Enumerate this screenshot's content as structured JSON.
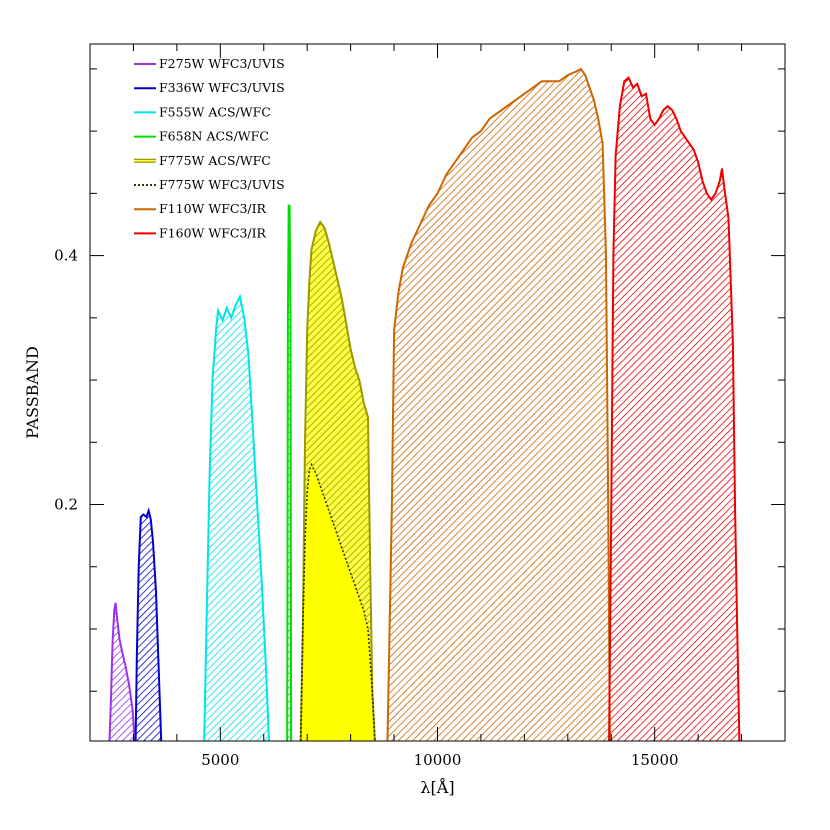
{
  "chart_data": {
    "type": "area",
    "title": "",
    "xlabel": "λ[Å]",
    "ylabel": "PASSBAND",
    "xlim": [
      2000,
      18000
    ],
    "ylim": [
      0.01,
      0.57
    ],
    "x_ticks": [
      5000,
      10000,
      15000
    ],
    "x_tick_labels": [
      "5000",
      "10000",
      "15000"
    ],
    "y_ticks": [
      0.2,
      0.4
    ],
    "y_tick_labels": [
      "0.2",
      "0.4"
    ],
    "grid": false,
    "legend_position": "top-left",
    "series": [
      {
        "name": "F275W WFC3/UVIS",
        "color": "#9933ee",
        "fill": "hatch",
        "points": [
          [
            2450,
            0.01
          ],
          [
            2480,
            0.04
          ],
          [
            2520,
            0.09
          ],
          [
            2560,
            0.115
          ],
          [
            2590,
            0.121
          ],
          [
            2620,
            0.11
          ],
          [
            2680,
            0.092
          ],
          [
            2750,
            0.08
          ],
          [
            2820,
            0.07
          ],
          [
            2900,
            0.055
          ],
          [
            2980,
            0.035
          ],
          [
            3030,
            0.01
          ]
        ]
      },
      {
        "name": "F336W WFC3/UVIS",
        "color": "#0000cc",
        "fill": "hatch",
        "points": [
          [
            3050,
            0.01
          ],
          [
            3080,
            0.08
          ],
          [
            3120,
            0.15
          ],
          [
            3170,
            0.19
          ],
          [
            3230,
            0.192
          ],
          [
            3300,
            0.19
          ],
          [
            3350,
            0.195
          ],
          [
            3400,
            0.188
          ],
          [
            3450,
            0.17
          ],
          [
            3520,
            0.13
          ],
          [
            3580,
            0.07
          ],
          [
            3640,
            0.01
          ]
        ]
      },
      {
        "name": "F555W ACS/WFC",
        "color": "#00e5e5",
        "fill": "hatch",
        "points": [
          [
            4630,
            0.01
          ],
          [
            4680,
            0.1
          ],
          [
            4750,
            0.22
          ],
          [
            4820,
            0.3
          ],
          [
            4900,
            0.34
          ],
          [
            4950,
            0.356
          ],
          [
            5050,
            0.348
          ],
          [
            5150,
            0.358
          ],
          [
            5250,
            0.35
          ],
          [
            5350,
            0.36
          ],
          [
            5450,
            0.367
          ],
          [
            5550,
            0.35
          ],
          [
            5650,
            0.32
          ],
          [
            5750,
            0.26
          ],
          [
            5850,
            0.2
          ],
          [
            5950,
            0.14
          ],
          [
            6050,
            0.07
          ],
          [
            6120,
            0.01
          ]
        ]
      },
      {
        "name": "F658N ACS/WFC",
        "color": "#00dd00",
        "fill": "hatch",
        "points": [
          [
            6540,
            0.01
          ],
          [
            6555,
            0.35
          ],
          [
            6575,
            0.44
          ],
          [
            6595,
            0.44
          ],
          [
            6615,
            0.35
          ],
          [
            6630,
            0.01
          ]
        ]
      },
      {
        "name": "F775W ACS/WFC",
        "color": "#999900",
        "fill_color": "#ffff44",
        "fill": "hatch",
        "points": [
          [
            6850,
            0.01
          ],
          [
            6900,
            0.1
          ],
          [
            6950,
            0.25
          ],
          [
            7000,
            0.34
          ],
          [
            7050,
            0.38
          ],
          [
            7100,
            0.405
          ],
          [
            7200,
            0.42
          ],
          [
            7300,
            0.427
          ],
          [
            7400,
            0.422
          ],
          [
            7500,
            0.41
          ],
          [
            7600,
            0.395
          ],
          [
            7700,
            0.38
          ],
          [
            7800,
            0.365
          ],
          [
            7900,
            0.345
          ],
          [
            8000,
            0.325
          ],
          [
            8100,
            0.31
          ],
          [
            8200,
            0.3
          ],
          [
            8300,
            0.282
          ],
          [
            8400,
            0.27
          ],
          [
            8450,
            0.15
          ],
          [
            8500,
            0.05
          ],
          [
            8560,
            0.01
          ]
        ]
      },
      {
        "name": "F775W WFC3/UVIS",
        "color": "#333300",
        "line_style": "dotted",
        "fill_color": "#ffff00",
        "fill": "solid",
        "points": [
          [
            6850,
            0.01
          ],
          [
            6900,
            0.1
          ],
          [
            6950,
            0.17
          ],
          [
            7000,
            0.21
          ],
          [
            7050,
            0.228
          ],
          [
            7100,
            0.232
          ],
          [
            7200,
            0.225
          ],
          [
            7300,
            0.215
          ],
          [
            7400,
            0.205
          ],
          [
            7500,
            0.195
          ],
          [
            7600,
            0.185
          ],
          [
            7700,
            0.175
          ],
          [
            7800,
            0.165
          ],
          [
            7900,
            0.155
          ],
          [
            8000,
            0.145
          ],
          [
            8100,
            0.135
          ],
          [
            8200,
            0.125
          ],
          [
            8300,
            0.115
          ],
          [
            8400,
            0.1
          ],
          [
            8500,
            0.05
          ],
          [
            8560,
            0.01
          ]
        ]
      },
      {
        "name": "F110W WFC3/IR",
        "color": "#cc6600",
        "fill": "hatch",
        "points": [
          [
            8850,
            0.01
          ],
          [
            8950,
            0.2
          ],
          [
            9000,
            0.34
          ],
          [
            9100,
            0.37
          ],
          [
            9200,
            0.39
          ],
          [
            9400,
            0.41
          ],
          [
            9600,
            0.425
          ],
          [
            9800,
            0.44
          ],
          [
            10000,
            0.45
          ],
          [
            10200,
            0.465
          ],
          [
            10400,
            0.475
          ],
          [
            10600,
            0.485
          ],
          [
            10800,
            0.495
          ],
          [
            11000,
            0.5
          ],
          [
            11200,
            0.51
          ],
          [
            11400,
            0.515
          ],
          [
            11600,
            0.52
          ],
          [
            11800,
            0.525
          ],
          [
            12000,
            0.53
          ],
          [
            12200,
            0.535
          ],
          [
            12400,
            0.54
          ],
          [
            12600,
            0.54
          ],
          [
            12800,
            0.54
          ],
          [
            13000,
            0.545
          ],
          [
            13200,
            0.548
          ],
          [
            13300,
            0.55
          ],
          [
            13400,
            0.545
          ],
          [
            13500,
            0.535
          ],
          [
            13600,
            0.525
          ],
          [
            13700,
            0.51
          ],
          [
            13800,
            0.49
          ],
          [
            13880,
            0.4
          ],
          [
            13930,
            0.2
          ],
          [
            13970,
            0.01
          ]
        ]
      },
      {
        "name": "F160W WFC3/IR",
        "color": "#ee0000",
        "fill": "hatch",
        "points": [
          [
            13950,
            0.01
          ],
          [
            14000,
            0.2
          ],
          [
            14050,
            0.4
          ],
          [
            14100,
            0.48
          ],
          [
            14200,
            0.52
          ],
          [
            14300,
            0.54
          ],
          [
            14400,
            0.543
          ],
          [
            14500,
            0.535
          ],
          [
            14600,
            0.538
          ],
          [
            14700,
            0.528
          ],
          [
            14800,
            0.53
          ],
          [
            14900,
            0.51
          ],
          [
            15000,
            0.505
          ],
          [
            15100,
            0.51
          ],
          [
            15200,
            0.517
          ],
          [
            15300,
            0.52
          ],
          [
            15400,
            0.517
          ],
          [
            15500,
            0.51
          ],
          [
            15600,
            0.5
          ],
          [
            15700,
            0.495
          ],
          [
            15800,
            0.49
          ],
          [
            15900,
            0.485
          ],
          [
            16000,
            0.475
          ],
          [
            16100,
            0.46
          ],
          [
            16200,
            0.45
          ],
          [
            16300,
            0.445
          ],
          [
            16400,
            0.45
          ],
          [
            16500,
            0.46
          ],
          [
            16550,
            0.47
          ],
          [
            16600,
            0.455
          ],
          [
            16700,
            0.43
          ],
          [
            16800,
            0.33
          ],
          [
            16850,
            0.2
          ],
          [
            16900,
            0.1
          ],
          [
            16950,
            0.01
          ]
        ]
      }
    ]
  }
}
